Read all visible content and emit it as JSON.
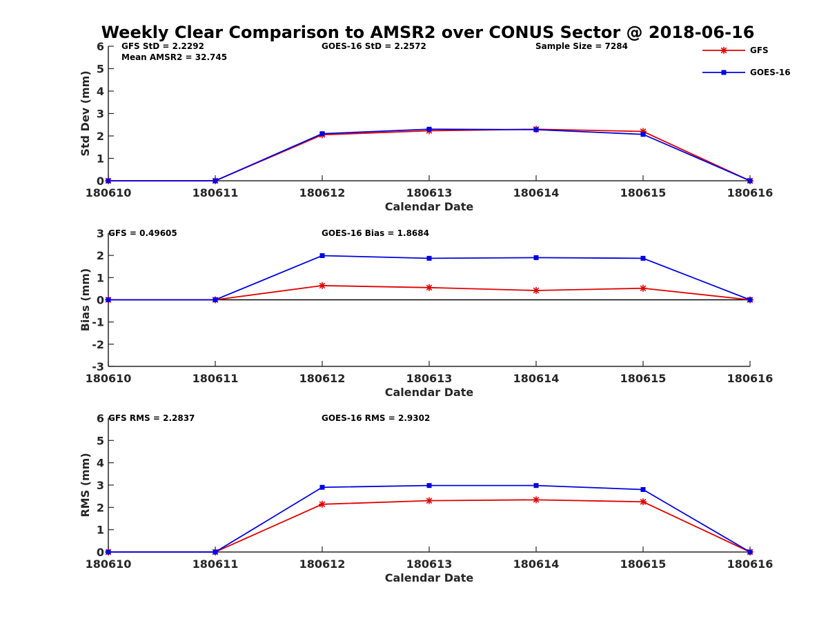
{
  "title": "Weekly Clear Comparison to AMSR2 over CONUS Sector @ 2018-06-16",
  "colors": {
    "gfs": "#e00000",
    "goes": "#0000e0",
    "axis": "#262626",
    "zero_line": "#000000"
  },
  "legend": {
    "placement": "top-right",
    "items": [
      {
        "label": "GFS",
        "color": "#e00000",
        "marker": "asterisk"
      },
      {
        "label": "GOES-16",
        "color": "#0000e0",
        "marker": "square"
      }
    ]
  },
  "chart_data": [
    {
      "type": "line",
      "ylabel": "Std Dev (mm)",
      "xlabel": "Calendar Date",
      "categories": [
        "180610",
        "180611",
        "180612",
        "180613",
        "180614",
        "180615",
        "180616"
      ],
      "ylim": [
        0,
        6
      ],
      "yticks": [
        "0",
        "1",
        "2",
        "3",
        "4",
        "5",
        "6"
      ],
      "zero_line": false,
      "series": [
        {
          "name": "GFS",
          "values": [
            0,
            0,
            2.05,
            2.23,
            2.3,
            2.2,
            0
          ]
        },
        {
          "name": "GOES-16",
          "values": [
            0,
            0,
            2.1,
            2.3,
            2.28,
            2.07,
            0
          ]
        }
      ],
      "annotations": [
        "GFS StD = 2.2292",
        "Mean AMSR2 = 32.745",
        "GOES-16 StD = 2.2572",
        "Sample Size = 7284"
      ]
    },
    {
      "type": "line",
      "ylabel": "Bias (mm)",
      "xlabel": "Calendar Date",
      "categories": [
        "180610",
        "180611",
        "180612",
        "180613",
        "180614",
        "180615",
        "180616"
      ],
      "ylim": [
        -3,
        3
      ],
      "yticks": [
        "-3",
        "-2",
        "-1",
        "0",
        "1",
        "2",
        "3"
      ],
      "zero_line": true,
      "series": [
        {
          "name": "GFS",
          "values": [
            0,
            0,
            0.64,
            0.55,
            0.42,
            0.52,
            0
          ]
        },
        {
          "name": "GOES-16",
          "values": [
            0,
            0,
            1.99,
            1.87,
            1.9,
            1.87,
            0
          ]
        }
      ],
      "annotations": [
        "GFS = 0.49605",
        "GOES-16 Bias  = 1.8684"
      ]
    },
    {
      "type": "line",
      "ylabel": "RMS (mm)",
      "xlabel": "Calendar Date",
      "categories": [
        "180610",
        "180611",
        "180612",
        "180613",
        "180614",
        "180615",
        "180616"
      ],
      "ylim": [
        0,
        6
      ],
      "yticks": [
        "0",
        "1",
        "2",
        "3",
        "4",
        "5",
        "6"
      ],
      "zero_line": false,
      "series": [
        {
          "name": "GFS",
          "values": [
            0,
            0,
            2.14,
            2.3,
            2.34,
            2.25,
            0
          ]
        },
        {
          "name": "GOES-16",
          "values": [
            0,
            0,
            2.9,
            2.98,
            2.98,
            2.8,
            0
          ]
        }
      ],
      "annotations": [
        "GFS RMS = 2.2837",
        "GOES-16 RMS = 2.9302"
      ]
    }
  ]
}
